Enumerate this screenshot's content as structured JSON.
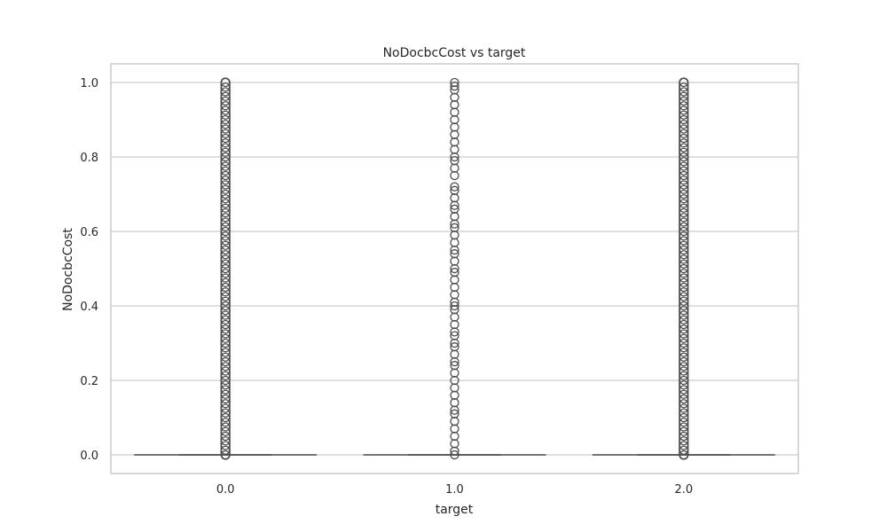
{
  "chart_data": {
    "type": "box",
    "title": "NoDocbcCost vs target",
    "xlabel": "target",
    "ylabel": "NoDocbcCost",
    "categories": [
      "0.0",
      "1.0",
      "2.0"
    ],
    "ylim": [
      -0.05,
      1.05
    ],
    "yticks": [
      "0.0",
      "0.2",
      "0.4",
      "0.6",
      "0.8",
      "1.0"
    ],
    "grid": true,
    "boxes": [
      {
        "category": "0.0",
        "min": 0,
        "q1": 0,
        "median": 0,
        "q3": 0,
        "max": 0,
        "outliers_dense_range": [
          0.0,
          1.0
        ]
      },
      {
        "category": "1.0",
        "min": 0,
        "q1": 0,
        "median": 0,
        "q3": 0,
        "max": 0,
        "outliers": [
          0.0,
          0.01,
          0.03,
          0.05,
          0.07,
          0.09,
          0.11,
          0.12,
          0.14,
          0.16,
          0.18,
          0.2,
          0.22,
          0.24,
          0.25,
          0.27,
          0.29,
          0.3,
          0.32,
          0.33,
          0.35,
          0.37,
          0.39,
          0.4,
          0.41,
          0.43,
          0.45,
          0.47,
          0.49,
          0.5,
          0.52,
          0.54,
          0.55,
          0.57,
          0.59,
          0.61,
          0.62,
          0.64,
          0.66,
          0.67,
          0.69,
          0.71,
          0.72,
          0.75,
          0.77,
          0.79,
          0.8,
          0.82,
          0.84,
          0.86,
          0.88,
          0.9,
          0.92,
          0.94,
          0.96,
          0.98,
          0.99,
          1.0
        ]
      },
      {
        "category": "2.0",
        "min": 0,
        "q1": 0,
        "median": 0,
        "q3": 0,
        "max": 0,
        "outliers_dense_range": [
          0.0,
          1.0
        ]
      }
    ],
    "colors": {
      "box": "#4d4d4d",
      "grid": "#cccccc",
      "frame": "#cccccc",
      "text": "#262626"
    }
  }
}
